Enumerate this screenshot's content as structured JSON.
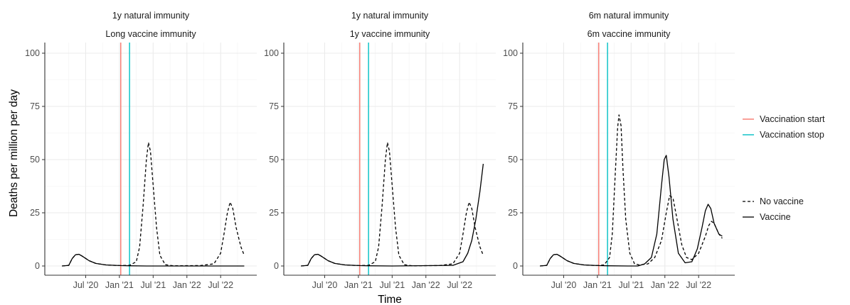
{
  "chart_data": {
    "type": "line",
    "ylabel": "Deaths per million per day",
    "xlabel": "Time",
    "ylim": [
      0,
      100
    ],
    "yticks": [
      "0",
      "25",
      "50",
      "75",
      "100"
    ],
    "xticks": [
      {
        "t": 0.5,
        "label": "Jul '20"
      },
      {
        "t": 1.0,
        "label": "Jan '21"
      },
      {
        "t": 1.5,
        "label": "Jul '21"
      },
      {
        "t": 2.0,
        "label": "Jan '22"
      },
      {
        "t": 2.5,
        "label": "Jul '22"
      }
    ],
    "x_unit": "years since Jan 2020",
    "xlim": [
      0.0,
      2.93
    ],
    "grid": true,
    "legend_position": "right",
    "vlines": [
      {
        "name": "Vaccination start",
        "x": 1.02,
        "color": "#F8766D"
      },
      {
        "name": "Vaccination stop",
        "x": 1.15,
        "color": "#00BFC4"
      }
    ],
    "line_types": [
      {
        "name": "No vaccine",
        "dash": true
      },
      {
        "name": "Vaccine",
        "dash": false
      }
    ],
    "panels": [
      {
        "strip1": "1y natural immunity",
        "strip2": "Long vaccine immunity",
        "series": [
          {
            "name": "No vaccine",
            "points": [
              [
                0.15,
                0
              ],
              [
                0.25,
                0.3
              ],
              [
                0.3,
                3.5
              ],
              [
                0.35,
                5.3
              ],
              [
                0.4,
                5.5
              ],
              [
                0.45,
                4.6
              ],
              [
                0.55,
                2.5
              ],
              [
                0.65,
                1.2
              ],
              [
                0.8,
                0.5
              ],
              [
                1.0,
                0.2
              ],
              [
                1.15,
                0.3
              ],
              [
                1.25,
                2
              ],
              [
                1.3,
                9
              ],
              [
                1.35,
                28
              ],
              [
                1.4,
                50
              ],
              [
                1.43,
                58
              ],
              [
                1.46,
                54
              ],
              [
                1.5,
                38
              ],
              [
                1.55,
                18
              ],
              [
                1.6,
                5
              ],
              [
                1.68,
                0.6
              ],
              [
                1.8,
                0.1
              ],
              [
                2.2,
                0.2
              ],
              [
                2.4,
                1
              ],
              [
                2.5,
                6
              ],
              [
                2.55,
                15
              ],
              [
                2.6,
                25
              ],
              [
                2.64,
                30
              ],
              [
                2.68,
                27
              ],
              [
                2.73,
                18
              ],
              [
                2.8,
                9
              ],
              [
                2.85,
                5
              ]
            ]
          },
          {
            "name": "Vaccine",
            "points": [
              [
                0.15,
                0
              ],
              [
                0.25,
                0.3
              ],
              [
                0.3,
                3.5
              ],
              [
                0.35,
                5.3
              ],
              [
                0.4,
                5.5
              ],
              [
                0.45,
                4.6
              ],
              [
                0.55,
                2.5
              ],
              [
                0.65,
                1.2
              ],
              [
                0.8,
                0.5
              ],
              [
                1.0,
                0.2
              ],
              [
                1.15,
                0.1
              ],
              [
                1.4,
                0
              ],
              [
                2.85,
                0
              ]
            ]
          }
        ]
      },
      {
        "strip1": "1y natural immunity",
        "strip2": "1y vaccine immunity",
        "series": [
          {
            "name": "No vaccine",
            "points": [
              [
                0.15,
                0
              ],
              [
                0.25,
                0.3
              ],
              [
                0.3,
                3.5
              ],
              [
                0.35,
                5.3
              ],
              [
                0.4,
                5.5
              ],
              [
                0.45,
                4.6
              ],
              [
                0.55,
                2.5
              ],
              [
                0.65,
                1.2
              ],
              [
                0.8,
                0.5
              ],
              [
                1.0,
                0.2
              ],
              [
                1.15,
                0.3
              ],
              [
                1.25,
                2
              ],
              [
                1.3,
                9
              ],
              [
                1.35,
                28
              ],
              [
                1.4,
                50
              ],
              [
                1.43,
                58
              ],
              [
                1.46,
                54
              ],
              [
                1.5,
                38
              ],
              [
                1.55,
                18
              ],
              [
                1.6,
                5
              ],
              [
                1.68,
                0.6
              ],
              [
                1.8,
                0.1
              ],
              [
                2.2,
                0.2
              ],
              [
                2.4,
                1
              ],
              [
                2.5,
                6
              ],
              [
                2.55,
                15
              ],
              [
                2.6,
                25
              ],
              [
                2.64,
                30
              ],
              [
                2.68,
                27
              ],
              [
                2.73,
                18
              ],
              [
                2.8,
                9
              ],
              [
                2.85,
                5
              ]
            ]
          },
          {
            "name": "Vaccine",
            "points": [
              [
                0.15,
                0
              ],
              [
                0.25,
                0.3
              ],
              [
                0.3,
                3.5
              ],
              [
                0.35,
                5.3
              ],
              [
                0.4,
                5.5
              ],
              [
                0.45,
                4.6
              ],
              [
                0.55,
                2.5
              ],
              [
                0.65,
                1.2
              ],
              [
                0.8,
                0.5
              ],
              [
                1.0,
                0.2
              ],
              [
                1.15,
                0.1
              ],
              [
                1.5,
                0
              ],
              [
                2.4,
                0.3
              ],
              [
                2.55,
                2
              ],
              [
                2.62,
                6
              ],
              [
                2.68,
                12
              ],
              [
                2.74,
                22
              ],
              [
                2.8,
                35
              ],
              [
                2.85,
                48
              ]
            ]
          }
        ]
      },
      {
        "strip1": "6m natural immunity",
        "strip2": "6m vaccine immunity",
        "series": [
          {
            "name": "No vaccine",
            "points": [
              [
                0.15,
                0
              ],
              [
                0.25,
                0.3
              ],
              [
                0.3,
                3.5
              ],
              [
                0.35,
                5.3
              ],
              [
                0.4,
                5.5
              ],
              [
                0.45,
                4.6
              ],
              [
                0.55,
                2.5
              ],
              [
                0.65,
                1.2
              ],
              [
                0.8,
                0.5
              ],
              [
                1.0,
                0.2
              ],
              [
                1.1,
                0.5
              ],
              [
                1.18,
                4
              ],
              [
                1.22,
                15
              ],
              [
                1.26,
                40
              ],
              [
                1.3,
                65
              ],
              [
                1.32,
                71
              ],
              [
                1.35,
                66
              ],
              [
                1.38,
                45
              ],
              [
                1.42,
                22
              ],
              [
                1.48,
                6
              ],
              [
                1.55,
                1
              ],
              [
                1.62,
                0.5
              ],
              [
                1.75,
                1
              ],
              [
                1.85,
                4
              ],
              [
                1.95,
                12
              ],
              [
                2.02,
                25
              ],
              [
                2.07,
                33
              ],
              [
                2.12,
                32
              ],
              [
                2.18,
                22
              ],
              [
                2.25,
                10
              ],
              [
                2.32,
                4
              ],
              [
                2.4,
                3
              ],
              [
                2.5,
                6
              ],
              [
                2.6,
                14
              ],
              [
                2.65,
                19
              ],
              [
                2.69,
                21
              ],
              [
                2.73,
                20
              ],
              [
                2.8,
                15
              ],
              [
                2.85,
                13
              ]
            ]
          },
          {
            "name": "Vaccine",
            "points": [
              [
                0.15,
                0
              ],
              [
                0.25,
                0.3
              ],
              [
                0.3,
                3.5
              ],
              [
                0.35,
                5.3
              ],
              [
                0.4,
                5.5
              ],
              [
                0.45,
                4.6
              ],
              [
                0.55,
                2.5
              ],
              [
                0.65,
                1.2
              ],
              [
                0.8,
                0.5
              ],
              [
                1.0,
                0.2
              ],
              [
                1.15,
                0.1
              ],
              [
                1.45,
                0
              ],
              [
                1.6,
                0
              ],
              [
                1.7,
                1
              ],
              [
                1.8,
                4
              ],
              [
                1.88,
                15
              ],
              [
                1.95,
                38
              ],
              [
                1.99,
                50
              ],
              [
                2.02,
                52
              ],
              [
                2.06,
                42
              ],
              [
                2.12,
                22
              ],
              [
                2.2,
                6
              ],
              [
                2.3,
                1.5
              ],
              [
                2.4,
                2
              ],
              [
                2.48,
                8
              ],
              [
                2.55,
                18
              ],
              [
                2.6,
                26
              ],
              [
                2.64,
                29
              ],
              [
                2.68,
                27
              ],
              [
                2.73,
                20
              ],
              [
                2.8,
                15
              ],
              [
                2.85,
                14
              ]
            ]
          }
        ]
      }
    ]
  }
}
